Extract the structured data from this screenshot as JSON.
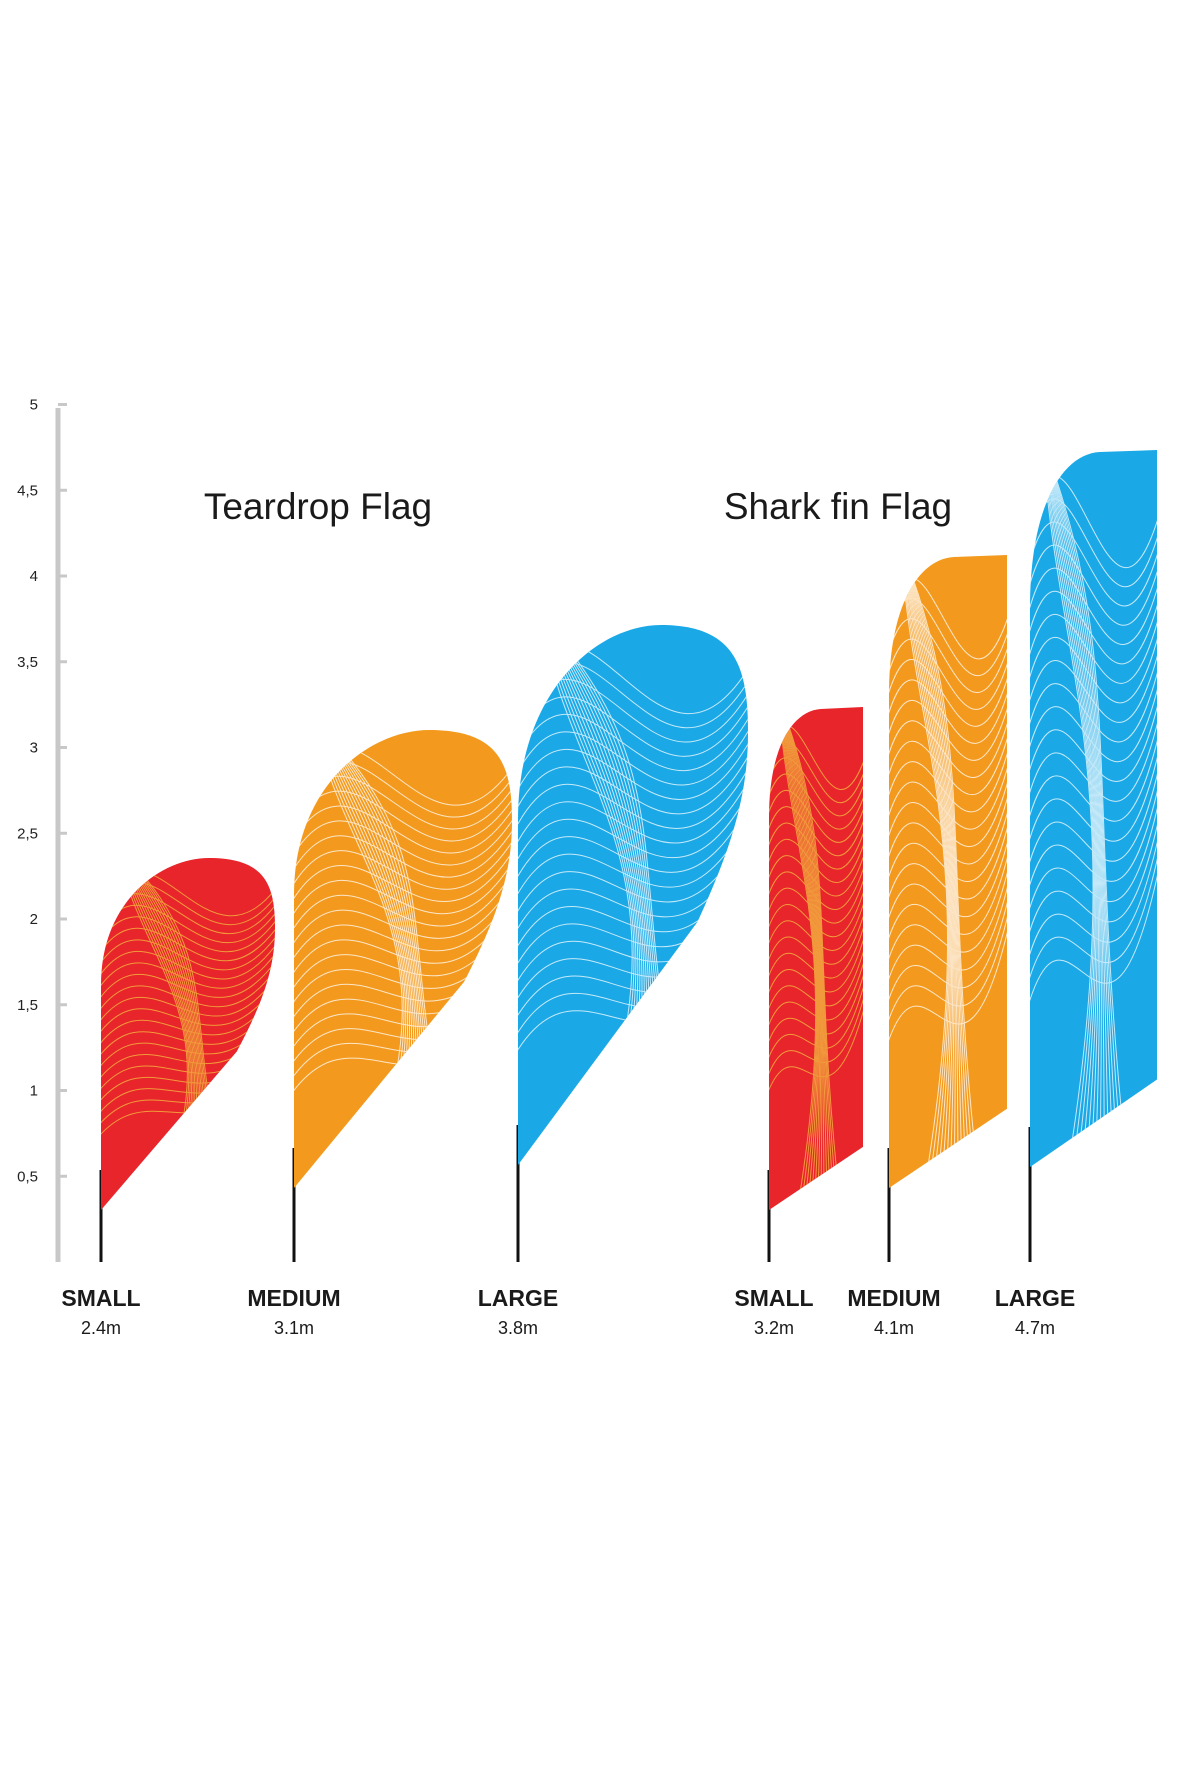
{
  "scale": {
    "unit": "m",
    "ticks": [
      {
        "value": 0.5,
        "label": "0,5"
      },
      {
        "value": 1,
        "label": "1"
      },
      {
        "value": 1.5,
        "label": "1,5"
      },
      {
        "value": 2,
        "label": "2"
      },
      {
        "value": 2.5,
        "label": "2,5"
      },
      {
        "value": 3,
        "label": "3"
      },
      {
        "value": 3.5,
        "label": "3,5"
      },
      {
        "value": 4,
        "label": "4"
      },
      {
        "value": 4.5,
        "label": "4,5"
      },
      {
        "value": 5,
        "label": "5"
      }
    ],
    "range": [
      0,
      5
    ]
  },
  "groups": [
    {
      "title": "Teardrop Flag",
      "shape": "teardrop",
      "flags": [
        {
          "size": "SMALL",
          "height_label": "2.4m",
          "height_m": 2.4,
          "color": "#e8252a",
          "line_color": "#f5c242"
        },
        {
          "size": "MEDIUM",
          "height_label": "3.1m",
          "height_m": 3.1,
          "color": "#f39a1e",
          "line_color": "#ffffff"
        },
        {
          "size": "LARGE",
          "height_label": "3.8m",
          "height_m": 3.8,
          "color": "#1aa9e6",
          "line_color": "#ffffff"
        }
      ]
    },
    {
      "title": "Shark fin Flag",
      "shape": "sharkfin",
      "flags": [
        {
          "size": "SMALL",
          "height_label": "3.2m",
          "height_m": 3.2,
          "color": "#e8252a",
          "line_color": "#f5c242"
        },
        {
          "size": "MEDIUM",
          "height_label": "4.1m",
          "height_m": 4.1,
          "color": "#f39a1e",
          "line_color": "#ffffff"
        },
        {
          "size": "LARGE",
          "height_label": "4.7m",
          "height_m": 4.7,
          "color": "#1aa9e6",
          "line_color": "#ffffff"
        }
      ]
    }
  ],
  "colors": {
    "axis": "#c8c8c8",
    "pole": "#111111"
  }
}
